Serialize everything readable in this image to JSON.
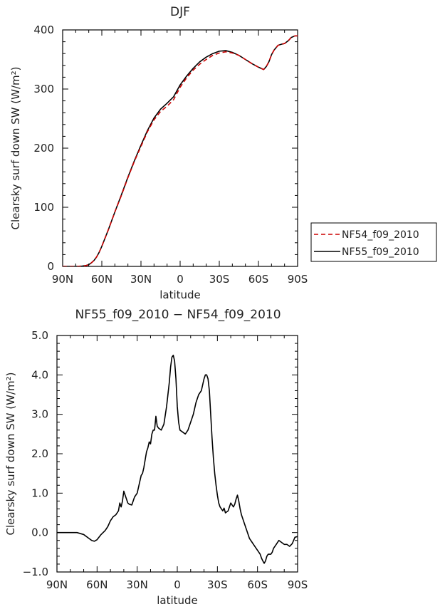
{
  "chart_data": [
    {
      "type": "line",
      "title": "DJF",
      "xlabel": "latitude",
      "ylabel": "Clearsky surf down SW (W/m²)",
      "xlim": [
        -90,
        90
      ],
      "ylim": [
        0,
        400
      ],
      "x_ticks": [
        -90,
        -60,
        -30,
        0,
        30,
        60,
        90
      ],
      "x_tick_labels": [
        "90N",
        "60N",
        "30N",
        "0",
        "30S",
        "60S",
        "90S"
      ],
      "y_ticks": [
        0,
        100,
        200,
        300,
        400
      ],
      "y_tick_labels": [
        "0",
        "100",
        "200",
        "300",
        "400"
      ],
      "legend_position": "right",
      "series": [
        {
          "name": "NF54_f09_2010",
          "color": "#cc0000",
          "dash": "dashed",
          "x": [
            -90,
            -80,
            -75,
            -72,
            -70,
            -68,
            -66,
            -64,
            -62,
            -60,
            -55,
            -50,
            -45,
            -40,
            -35,
            -30,
            -25,
            -20,
            -15,
            -10,
            -5,
            0,
            5,
            10,
            15,
            20,
            25,
            30,
            35,
            40,
            45,
            50,
            55,
            60,
            64,
            66,
            68,
            70,
            72,
            75,
            78,
            80,
            83,
            85,
            88,
            90
          ],
          "y": [
            0,
            0,
            0.5,
            1.5,
            3,
            6,
            10,
            16,
            24,
            34,
            62,
            92,
            120,
            150,
            178,
            203,
            228,
            248,
            262,
            271,
            282,
            303,
            319,
            332,
            342,
            350,
            357,
            361,
            363,
            361,
            357,
            350,
            343,
            337,
            333,
            338,
            346,
            358,
            366,
            374,
            376,
            377,
            382,
            387,
            390,
            390
          ]
        },
        {
          "name": "NF55_f09_2010",
          "color": "#000000",
          "dash": "solid",
          "x": [
            -90,
            -80,
            -75,
            -72,
            -70,
            -68,
            -66,
            -64,
            -62,
            -60,
            -55,
            -50,
            -45,
            -40,
            -35,
            -30,
            -25,
            -20,
            -15,
            -10,
            -5,
            0,
            5,
            10,
            15,
            20,
            25,
            30,
            35,
            40,
            45,
            50,
            55,
            60,
            64,
            66,
            68,
            70,
            72,
            75,
            78,
            80,
            83,
            85,
            88,
            90
          ],
          "y": [
            0,
            0,
            0.5,
            1.5,
            3,
            6,
            10,
            16,
            24,
            34,
            62,
            92,
            121,
            151,
            179,
            205,
            230,
            251,
            266,
            276,
            287,
            307,
            322,
            335,
            346,
            354,
            360,
            364,
            365,
            362,
            357,
            350,
            343,
            337,
            333,
            338,
            346,
            358,
            366,
            374,
            376,
            377,
            382,
            387,
            390,
            390
          ]
        }
      ]
    },
    {
      "type": "line",
      "title": "NF55_f09_2010 − NF54_f09_2010",
      "xlabel": "latitude",
      "ylabel": "Clearsky surf down SW (W/m²)",
      "xlim": [
        -90,
        90
      ],
      "ylim": [
        -1.0,
        5.0
      ],
      "x_ticks": [
        -90,
        -60,
        -30,
        0,
        30,
        60,
        90
      ],
      "x_tick_labels": [
        "90N",
        "60N",
        "30N",
        "0",
        "30S",
        "60S",
        "90S"
      ],
      "y_ticks": [
        -1,
        0,
        1,
        2,
        3,
        4,
        5
      ],
      "y_tick_labels": [
        "−1.0",
        "0.0",
        "1.0",
        "2.0",
        "3.0",
        "4.0",
        "5.0"
      ],
      "series": [
        {
          "color": "#000000",
          "x": [
            -90,
            -75,
            -70,
            -66,
            -64,
            -62,
            -60,
            -57,
            -54,
            -52,
            -50,
            -48,
            -46,
            -44,
            -43,
            -42,
            -41,
            -40,
            -39,
            -38,
            -37,
            -36,
            -34,
            -32,
            -30,
            -29,
            -28,
            -27,
            -26,
            -25,
            -24,
            -23,
            -22,
            -21,
            -20,
            -19,
            -18,
            -17,
            -16,
            -15,
            -14,
            -12,
            -10,
            -8,
            -6,
            -5,
            -4,
            -3,
            -2,
            -1,
            0,
            1,
            2,
            4,
            6,
            8,
            10,
            12,
            14,
            16,
            18,
            19,
            20,
            21,
            22,
            23,
            24,
            25,
            26,
            27,
            28,
            29,
            30,
            31,
            32,
            33,
            34,
            35,
            36,
            38,
            40,
            41,
            42,
            43,
            44,
            45,
            46,
            47,
            48,
            49,
            50,
            52,
            54,
            56,
            58,
            60,
            62,
            63,
            64,
            65,
            66,
            67,
            68,
            69,
            70,
            71,
            72,
            74,
            76,
            78,
            80,
            82,
            84,
            86,
            88,
            90
          ],
          "y": [
            0.0,
            0.0,
            -0.05,
            -0.15,
            -0.2,
            -0.22,
            -0.18,
            -0.05,
            0.05,
            0.15,
            0.3,
            0.4,
            0.45,
            0.55,
            0.75,
            0.65,
            0.8,
            1.05,
            0.95,
            0.85,
            0.75,
            0.72,
            0.7,
            0.9,
            1.0,
            1.15,
            1.3,
            1.45,
            1.5,
            1.65,
            1.85,
            2.05,
            2.15,
            2.3,
            2.25,
            2.5,
            2.6,
            2.6,
            2.95,
            2.7,
            2.65,
            2.6,
            2.75,
            3.2,
            3.8,
            4.2,
            4.45,
            4.5,
            4.35,
            3.9,
            3.2,
            2.8,
            2.6,
            2.55,
            2.5,
            2.6,
            2.8,
            3.0,
            3.3,
            3.5,
            3.6,
            3.75,
            3.9,
            4.0,
            4.0,
            3.9,
            3.6,
            3.0,
            2.4,
            1.9,
            1.5,
            1.2,
            0.95,
            0.75,
            0.65,
            0.6,
            0.55,
            0.62,
            0.5,
            0.55,
            0.75,
            0.7,
            0.65,
            0.72,
            0.85,
            0.95,
            0.8,
            0.6,
            0.45,
            0.35,
            0.25,
            0.05,
            -0.15,
            -0.25,
            -0.35,
            -0.45,
            -0.55,
            -0.65,
            -0.72,
            -0.78,
            -0.72,
            -0.6,
            -0.55,
            -0.55,
            -0.55,
            -0.5,
            -0.4,
            -0.3,
            -0.2,
            -0.25,
            -0.3,
            -0.3,
            -0.35,
            -0.28,
            -0.12,
            -0.1
          ]
        }
      ]
    }
  ]
}
